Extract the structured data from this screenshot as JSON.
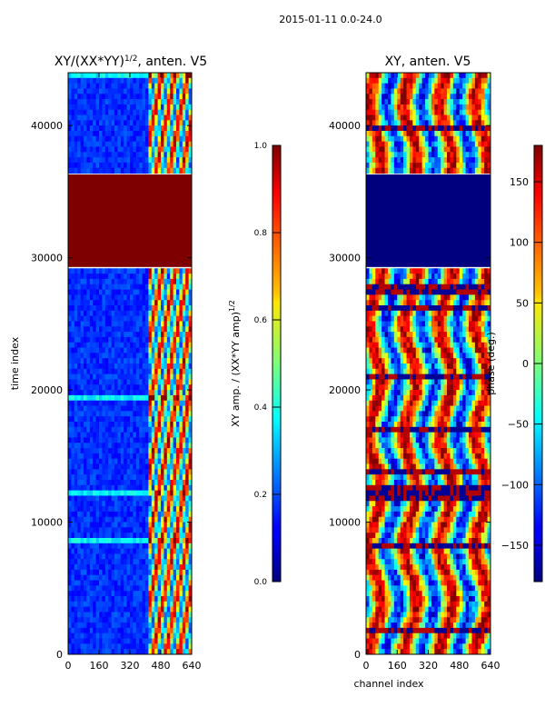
{
  "figure": {
    "suptitle": "2015-01-11 0.0-24.0",
    "xlabel": "channel index",
    "ylabel": "time index"
  },
  "chart_data": [
    {
      "type": "heatmap",
      "title_main": "XY/(XX*YY)",
      "title_sup": "1/2",
      "title_rest": ", anten. V5",
      "xlabel": "",
      "ylabel": "time index",
      "xlim": [
        0,
        640
      ],
      "ylim": [
        0,
        44000
      ],
      "x_ticks": [
        0,
        160,
        320,
        480,
        640
      ],
      "y_ticks": [
        0,
        10000,
        20000,
        30000,
        40000
      ],
      "colorbar": {
        "label_main": "XY amp. / (XX*YY amp)",
        "label_sup": "1/2",
        "range": [
          0.0,
          1.0
        ],
        "ticks": [
          "0.0",
          "0.2",
          "0.4",
          "0.6",
          "0.8",
          "1.0"
        ],
        "colormap": "jet"
      },
      "flagged_block": [
        29300,
        36300
      ],
      "flagged_value": 1.0
    },
    {
      "type": "heatmap",
      "title": "XY, anten. V5",
      "xlabel": "channel index",
      "ylabel": "",
      "xlim": [
        0,
        640
      ],
      "ylim": [
        0,
        44000
      ],
      "x_ticks": [
        0,
        160,
        320,
        480,
        640
      ],
      "y_ticks": [
        0,
        10000,
        20000,
        30000,
        40000
      ],
      "colorbar": {
        "label": "phase (deg.)",
        "range": [
          -180,
          180
        ],
        "ticks": [
          "150",
          "100",
          "50",
          "0",
          "−50",
          "−100",
          "−150"
        ],
        "colormap": "jet"
      },
      "flagged_block": [
        29300,
        36300
      ],
      "flagged_value": -180
    }
  ]
}
